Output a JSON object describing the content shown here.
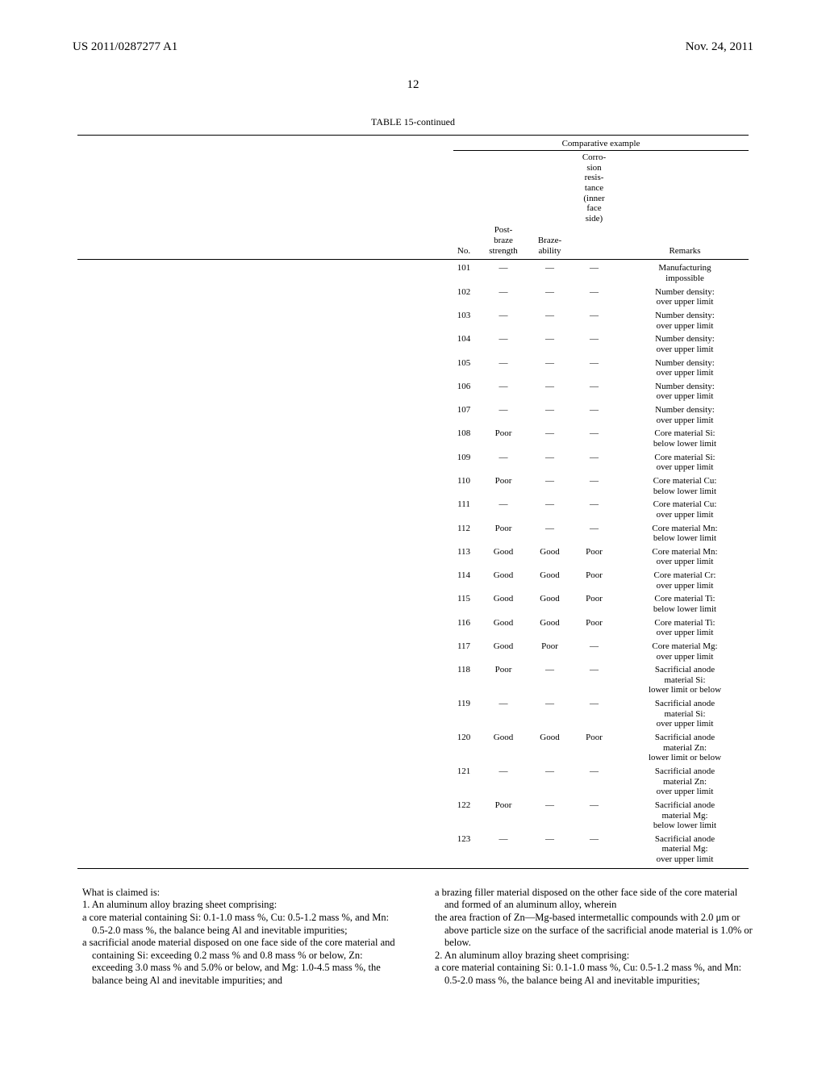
{
  "header": {
    "pub_number": "US 2011/0287277 A1",
    "pub_date": "Nov. 24, 2011"
  },
  "page_number": "12",
  "table": {
    "caption": "TABLE 15-continued",
    "group_header": "Comparative example",
    "headers": {
      "no": "No.",
      "strength_l1": "Post-",
      "strength_l2": "braze",
      "strength_l3": "strength",
      "braze_l1": "Braze-",
      "braze_l2": "ability",
      "corr_l1": "Corro-",
      "corr_l2": "sion",
      "corr_l3": "resis-",
      "corr_l4": "tance",
      "corr_l5": "(inner",
      "corr_l6": "face",
      "corr_l7": "side)",
      "remarks": "Remarks"
    },
    "rows": [
      {
        "no": "101",
        "strength": "—",
        "braze": "—",
        "corr": "—",
        "remarks": [
          "Manufacturing",
          "impossible"
        ]
      },
      {
        "no": "102",
        "strength": "—",
        "braze": "—",
        "corr": "—",
        "remarks": [
          "Number density:",
          "over upper limit"
        ]
      },
      {
        "no": "103",
        "strength": "—",
        "braze": "—",
        "corr": "—",
        "remarks": [
          "Number density:",
          "over upper limit"
        ]
      },
      {
        "no": "104",
        "strength": "—",
        "braze": "—",
        "corr": "—",
        "remarks": [
          "Number density:",
          "over upper limit"
        ]
      },
      {
        "no": "105",
        "strength": "—",
        "braze": "—",
        "corr": "—",
        "remarks": [
          "Number density:",
          "over upper limit"
        ]
      },
      {
        "no": "106",
        "strength": "—",
        "braze": "—",
        "corr": "—",
        "remarks": [
          "Number density:",
          "over upper limit"
        ]
      },
      {
        "no": "107",
        "strength": "—",
        "braze": "—",
        "corr": "—",
        "remarks": [
          "Number density:",
          "over upper limit"
        ]
      },
      {
        "no": "108",
        "strength": "Poor",
        "braze": "—",
        "corr": "—",
        "remarks": [
          "Core material Si:",
          "below lower limit"
        ]
      },
      {
        "no": "109",
        "strength": "—",
        "braze": "—",
        "corr": "—",
        "remarks": [
          "Core material Si:",
          "over upper limit"
        ]
      },
      {
        "no": "110",
        "strength": "Poor",
        "braze": "—",
        "corr": "—",
        "remarks": [
          "Core material Cu:",
          "below lower limit"
        ]
      },
      {
        "no": "111",
        "strength": "—",
        "braze": "—",
        "corr": "—",
        "remarks": [
          "Core material Cu:",
          "over upper limit"
        ]
      },
      {
        "no": "112",
        "strength": "Poor",
        "braze": "—",
        "corr": "—",
        "remarks": [
          "Core material Mn:",
          "below lower limit"
        ]
      },
      {
        "no": "113",
        "strength": "Good",
        "braze": "Good",
        "corr": "Poor",
        "remarks": [
          "Core material Mn:",
          "over upper limit"
        ]
      },
      {
        "no": "114",
        "strength": "Good",
        "braze": "Good",
        "corr": "Poor",
        "remarks": [
          "Core material Cr:",
          "over upper limit"
        ]
      },
      {
        "no": "115",
        "strength": "Good",
        "braze": "Good",
        "corr": "Poor",
        "remarks": [
          "Core material Ti:",
          "below lower limit"
        ]
      },
      {
        "no": "116",
        "strength": "Good",
        "braze": "Good",
        "corr": "Poor",
        "remarks": [
          "Core material Ti:",
          "over upper limit"
        ]
      },
      {
        "no": "117",
        "strength": "Good",
        "braze": "Poor",
        "corr": "—",
        "remarks": [
          "Core material Mg:",
          "over upper limit"
        ]
      },
      {
        "no": "118",
        "strength": "Poor",
        "braze": "—",
        "corr": "—",
        "remarks": [
          "Sacrificial anode",
          "material Si:",
          "lower limit or below"
        ]
      },
      {
        "no": "119",
        "strength": "—",
        "braze": "—",
        "corr": "—",
        "remarks": [
          "Sacrificial anode",
          "material Si:",
          "over upper limit"
        ]
      },
      {
        "no": "120",
        "strength": "Good",
        "braze": "Good",
        "corr": "Poor",
        "remarks": [
          "Sacrificial anode",
          "material Zn:",
          "lower limit or below"
        ]
      },
      {
        "no": "121",
        "strength": "—",
        "braze": "—",
        "corr": "—",
        "remarks": [
          "Sacrificial anode",
          "material Zn:",
          "over upper limit"
        ]
      },
      {
        "no": "122",
        "strength": "Poor",
        "braze": "—",
        "corr": "—",
        "remarks": [
          "Sacrificial anode",
          "material Mg:",
          "below lower limit"
        ]
      },
      {
        "no": "123",
        "strength": "—",
        "braze": "—",
        "corr": "—",
        "remarks": [
          "Sacrificial anode",
          "material Mg:",
          "over upper limit"
        ]
      }
    ]
  },
  "claims": {
    "left": {
      "intro": "What is claimed is:",
      "c1_open": "1. An aluminum alloy brazing sheet comprising:",
      "c1_core": "a core material containing Si: 0.1-1.0 mass %, Cu: 0.5-1.2 mass %, and Mn: 0.5-2.0 mass %, the balance being Al and inevitable impurities;",
      "c1_anode": "a sacrificial anode material disposed on one face side of the core material and containing Si: exceeding 0.2 mass % and 0.8 mass % or below, Zn: exceeding 3.0 mass % and 5.0% or below, and Mg: 1.0-4.5 mass %, the balance being Al and inevitable impurities; and"
    },
    "right": {
      "c1_braze": "a brazing filler material disposed on the other face side of the core material and formed of an aluminum alloy, wherein",
      "c1_area": "the area fraction of Zn—Mg-based intermetallic compounds with 2.0 μm or above particle size on the surface of the sacrificial anode material is 1.0% or below.",
      "c2_open": "2. An aluminum alloy brazing sheet comprising:",
      "c2_core": "a core material containing Si: 0.1-1.0 mass %, Cu: 0.5-1.2 mass %, and Mn: 0.5-2.0 mass %, the balance being Al and inevitable impurities;"
    }
  }
}
